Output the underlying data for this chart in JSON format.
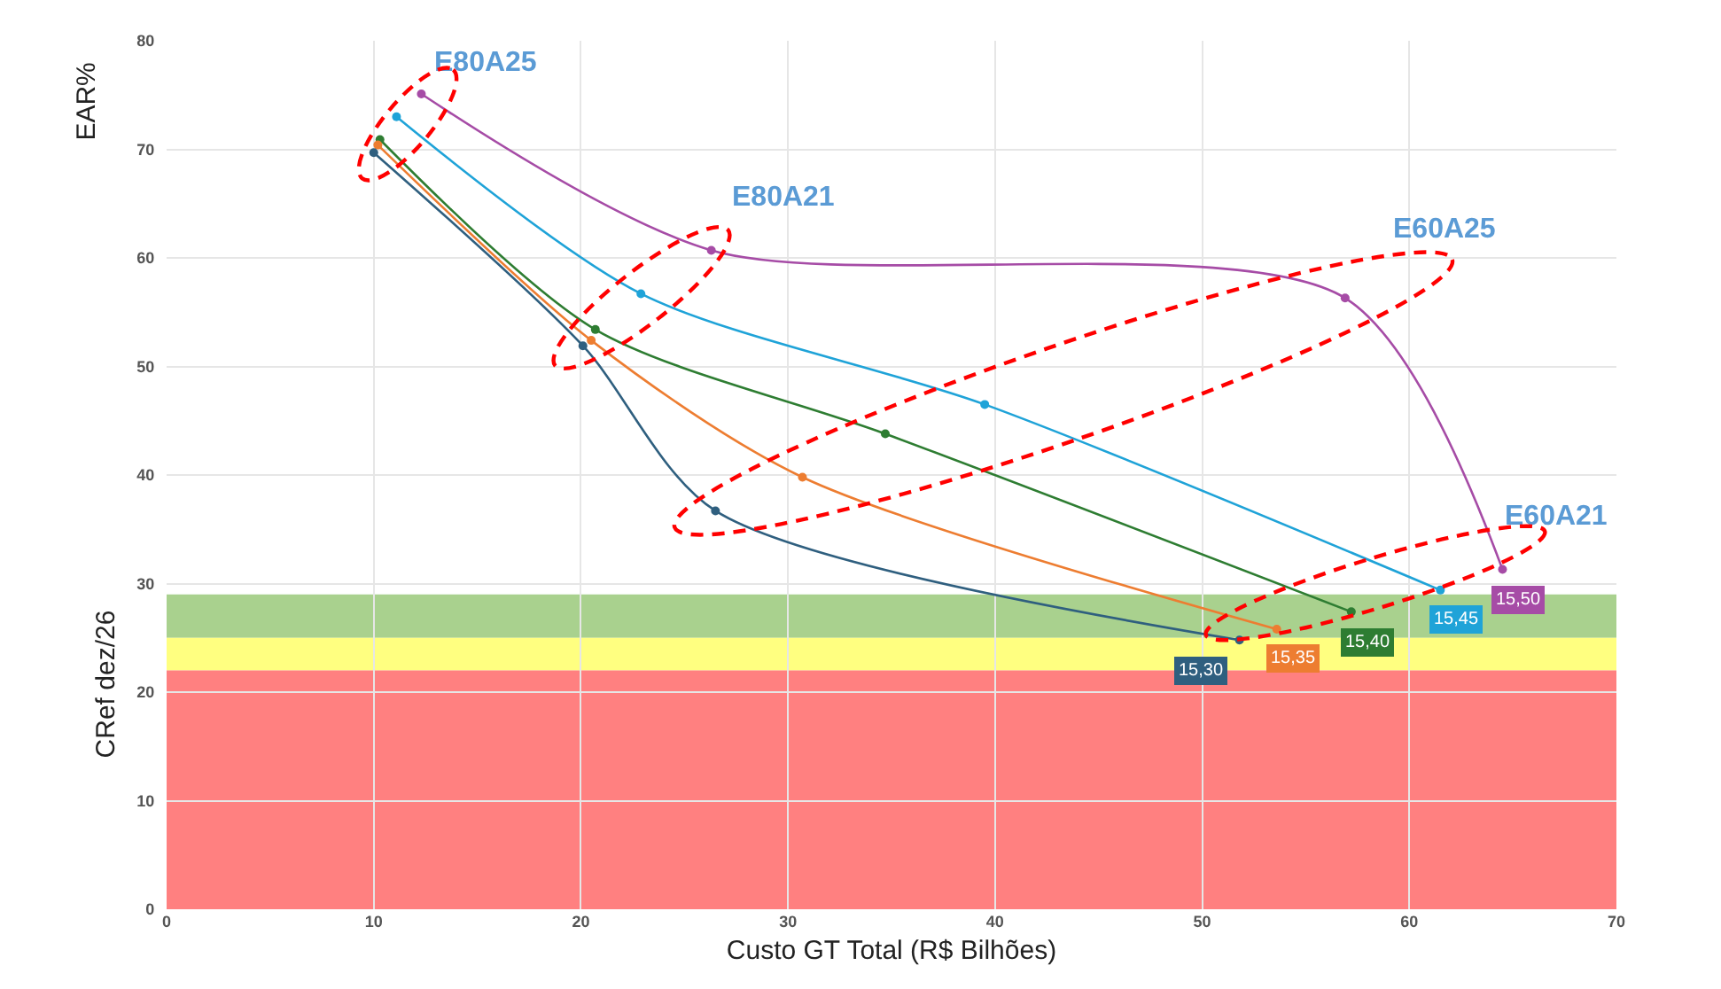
{
  "chart_data": {
    "type": "line",
    "xlabel": "Custo GT Total (R$ Bilhões)",
    "ylabel": "CRef dez/26",
    "xlim": [
      0,
      70
    ],
    "xticks": [
      0,
      10,
      20,
      30,
      40,
      50,
      60,
      70
    ],
    "ylim": [
      0,
      80
    ],
    "yticks": [
      0,
      10,
      20,
      30,
      40,
      50,
      60,
      70,
      80
    ],
    "grid": true,
    "marker": "circle",
    "line_style": "solid",
    "series": [
      {
        "color": "#a64ca6",
        "x": [
          12.3,
          26.3,
          56.9,
          64.5
        ],
        "values": [
          75.1,
          60.7,
          56.3,
          31.3
        ]
      },
      {
        "color": "#1fa3d8",
        "x": [
          11.1,
          22.9,
          39.5,
          61.5
        ],
        "values": [
          73.0,
          56.7,
          46.5,
          29.4
        ]
      },
      {
        "color": "#2e7d32",
        "x": [
          10.3,
          20.7,
          34.7,
          57.2
        ],
        "values": [
          70.9,
          53.4,
          43.8,
          27.4
        ]
      },
      {
        "color": "#ed7d31",
        "x": [
          10.2,
          20.5,
          30.7,
          53.6
        ],
        "values": [
          70.4,
          52.4,
          39.8,
          25.8
        ]
      },
      {
        "color": "#2f5f7f",
        "x": [
          10.0,
          20.1,
          26.5,
          51.8
        ],
        "values": [
          69.7,
          51.9,
          36.7,
          24.8
        ]
      }
    ],
    "bands": [
      {
        "axis": "y",
        "from": 25,
        "to": 29,
        "color": "#a9d18e"
      },
      {
        "axis": "y",
        "from": 22,
        "to": 25,
        "color": "#ffff80"
      },
      {
        "axis": "y",
        "from": 0,
        "to": 22,
        "color": "#ff8080"
      }
    ],
    "annotations": [
      "EAR%",
      "E80A25",
      "E80A21",
      "E60A25",
      "E60A21",
      {
        "text": "15,50",
        "x": 64.5,
        "y": 31.3
      },
      {
        "text": "15,45",
        "x": 61.5,
        "y": 29.4
      },
      {
        "text": "15,40",
        "x": 57.2,
        "y": 27.4
      },
      {
        "text": "15,35",
        "x": 53.6,
        "y": 25.8
      },
      {
        "text": "15,30",
        "x": 51.8,
        "y": 24.8
      }
    ]
  }
}
